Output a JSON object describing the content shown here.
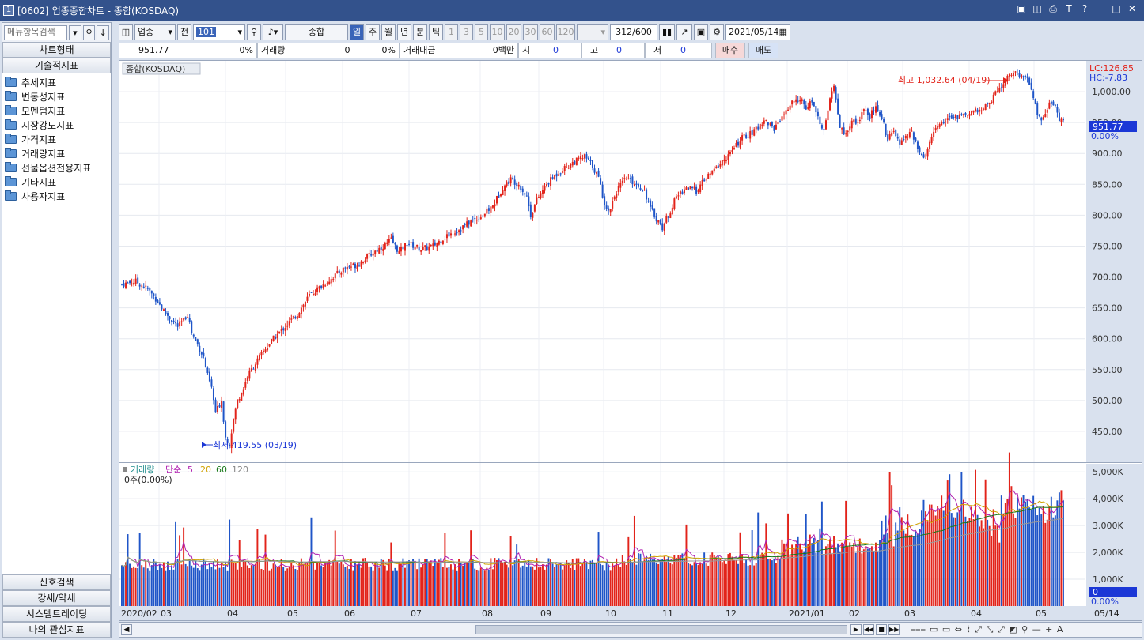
{
  "window": {
    "badge": "1",
    "title": "[0602] 업종종합차트 - 종합(KOSDAQ)"
  },
  "left": {
    "search_placeholder": "메뉴항목검색",
    "tab_chart_type": "차트형태",
    "tab_indicators": "기술적지표",
    "tree": [
      "추세지표",
      "변동성지표",
      "모멘텀지표",
      "시장강도지표",
      "가격지표",
      "거래량지표",
      "선물옵션전용지표",
      "기타지표",
      "사용자지표"
    ],
    "bottom": [
      "신호검색",
      "강세/약세",
      "시스템트레이딩",
      "나의 관심지표"
    ]
  },
  "toolbar": {
    "sector": "업종",
    "prev": "전",
    "code": "101",
    "index_name": "종합(KOSDAQ)",
    "periods": [
      "일",
      "주",
      "월",
      "년",
      "분",
      "틱"
    ],
    "minutes": [
      "1",
      "3",
      "5",
      "10",
      "20",
      "30",
      "60",
      "120"
    ],
    "count": "312",
    "total": "/600",
    "date": "2021/05/14"
  },
  "quote": {
    "price": "951.77",
    "change_pct": "0%",
    "vol_label": "거래량",
    "vol": "0",
    "vol_pct": "0%",
    "amount_label": "거래대금",
    "amount": "0백만",
    "open_label": "시",
    "open": "0",
    "high_label": "고",
    "high": "0",
    "low_label": "저",
    "low": "0",
    "buy": "매수",
    "sell": "매도"
  },
  "price_panel": {
    "title": "종합(KOSDAQ)",
    "lc": "LC:126.85",
    "hc": "HC:-7.83",
    "last": "951.77",
    "last_pct": "0.00%",
    "max_label": "최고 1,032.64 (04/19)",
    "min_label": "최저 419.55 (03/19)"
  },
  "volume_panel": {
    "label": "거래량",
    "ma_label": "단순",
    "ma5": "5",
    "ma20": "20",
    "ma60": "60",
    "ma120": "120",
    "summary": "0주(0.00%)",
    "last": "0",
    "last_pct": "0.00%"
  },
  "x_axis": [
    "2020/02",
    "03",
    "04",
    "05",
    "06",
    "07",
    "08",
    "09",
    "10",
    "11",
    "12",
    "2021/01",
    "02",
    "03",
    "04",
    "05",
    "05/14"
  ],
  "chart_data": {
    "type": "candlestick",
    "y_ticks": [
      "1,000.00",
      "950.00",
      "900.00",
      "850.00",
      "800.00",
      "750.00",
      "700.00",
      "650.00",
      "600.00",
      "550.00",
      "500.00",
      "450.00"
    ],
    "ylim": [
      400,
      1050
    ],
    "volume_ticks": [
      "5,000K",
      "4,000K",
      "3,000K",
      "2,000K",
      "1,000K"
    ],
    "volume_ylim": [
      0,
      5300
    ],
    "close_path": [
      [
        0,
        688
      ],
      [
        7,
        693
      ],
      [
        13,
        680
      ],
      [
        17,
        665
      ],
      [
        21,
        645
      ],
      [
        25,
        630
      ],
      [
        28,
        620
      ],
      [
        31,
        630
      ],
      [
        33,
        640
      ],
      [
        35,
        610
      ],
      [
        38,
        590
      ],
      [
        41,
        570
      ],
      [
        43,
        540
      ],
      [
        45,
        520
      ],
      [
        47,
        480
      ],
      [
        50,
        500
      ],
      [
        52,
        440
      ],
      [
        54,
        430
      ],
      [
        56,
        470
      ],
      [
        58,
        500
      ],
      [
        61,
        520
      ],
      [
        63,
        540
      ],
      [
        67,
        560
      ],
      [
        71,
        580
      ],
      [
        76,
        600
      ],
      [
        82,
        620
      ],
      [
        88,
        640
      ],
      [
        94,
        670
      ],
      [
        100,
        685
      ],
      [
        106,
        700
      ],
      [
        112,
        715
      ],
      [
        118,
        720
      ],
      [
        124,
        735
      ],
      [
        127,
        742
      ],
      [
        131,
        750
      ],
      [
        135,
        760
      ],
      [
        139,
        740
      ],
      [
        143,
        755
      ],
      [
        150,
        745
      ],
      [
        156,
        750
      ],
      [
        162,
        765
      ],
      [
        168,
        775
      ],
      [
        175,
        790
      ],
      [
        181,
        800
      ],
      [
        186,
        815
      ],
      [
        191,
        845
      ],
      [
        195,
        858
      ],
      [
        199,
        850
      ],
      [
        203,
        830
      ],
      [
        205,
        800
      ],
      [
        208,
        825
      ],
      [
        213,
        850
      ],
      [
        219,
        870
      ],
      [
        226,
        885
      ],
      [
        232,
        895
      ],
      [
        236,
        880
      ],
      [
        239,
        860
      ],
      [
        242,
        820
      ],
      [
        244,
        805
      ],
      [
        248,
        840
      ],
      [
        253,
        860
      ],
      [
        258,
        850
      ],
      [
        262,
        840
      ],
      [
        265,
        810
      ],
      [
        267,
        800
      ],
      [
        271,
        780
      ],
      [
        274,
        800
      ],
      [
        278,
        830
      ],
      [
        283,
        845
      ],
      [
        288,
        840
      ],
      [
        293,
        860
      ],
      [
        299,
        880
      ],
      [
        305,
        900
      ],
      [
        311,
        925
      ],
      [
        317,
        935
      ],
      [
        322,
        955
      ],
      [
        327,
        940
      ],
      [
        332,
        965
      ],
      [
        337,
        985
      ],
      [
        340,
        990
      ],
      [
        343,
        970
      ],
      [
        346,
        985
      ],
      [
        349,
        960
      ],
      [
        352,
        935
      ],
      [
        355,
        990
      ],
      [
        357,
        1005
      ],
      [
        360,
        945
      ],
      [
        363,
        930
      ],
      [
        366,
        955
      ],
      [
        369,
        950
      ],
      [
        372,
        975
      ],
      [
        375,
        960
      ],
      [
        378,
        980
      ],
      [
        381,
        958
      ],
      [
        384,
        920
      ],
      [
        387,
        940
      ],
      [
        390,
        915
      ],
      [
        393,
        925
      ],
      [
        396,
        935
      ],
      [
        399,
        910
      ],
      [
        402,
        890
      ],
      [
        404,
        905
      ],
      [
        407,
        935
      ],
      [
        410,
        950
      ],
      [
        414,
        955
      ],
      [
        419,
        960
      ],
      [
        424,
        962
      ],
      [
        429,
        970
      ],
      [
        434,
        980
      ],
      [
        439,
        1000
      ],
      [
        443,
        1020
      ],
      [
        447,
        1030
      ],
      [
        451,
        1025
      ],
      [
        454,
        1020
      ],
      [
        457,
        990
      ],
      [
        459,
        965
      ],
      [
        461,
        950
      ],
      [
        463,
        965
      ],
      [
        466,
        985
      ],
      [
        468,
        975
      ],
      [
        470,
        955
      ],
      [
        472,
        952
      ]
    ],
    "n_bars": 472
  }
}
